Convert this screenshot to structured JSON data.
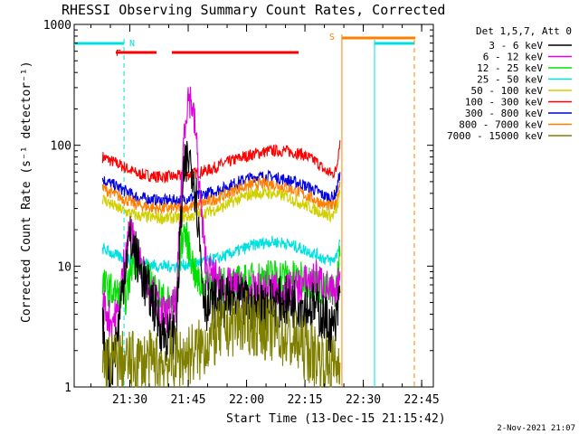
{
  "chart_data": {
    "type": "line",
    "title": "RHESSI Observing Summary Count Rates, Corrected",
    "xlabel": "Start Time (13-Dec-15 21:15:42)",
    "ylabel": "Corrected Count Rate (s⁻¹ detector⁻¹)",
    "ylim": [
      1,
      1000
    ],
    "yscale": "log",
    "xlim_minutes_of_day": [
      1275.7,
      1368
    ],
    "x_tick_labels": [
      "21:30",
      "21:45",
      "22:00",
      "22:15",
      "22:30",
      "22:45"
    ],
    "x_tick_minutes": [
      1290,
      1305,
      1320,
      1335,
      1350,
      1365
    ],
    "y_tick_labels": [
      "1",
      "10",
      "100",
      "1000"
    ],
    "y_tick_values": [
      1,
      10,
      100,
      1000
    ],
    "legend": {
      "header": "Det 1,5,7, Att 0",
      "placement": "outside-right",
      "entries": [
        {
          "name": "3 - 6 keV",
          "color": "#000000"
        },
        {
          "name": "6 - 12 keV",
          "color": "#e000e0"
        },
        {
          "name": "12 - 25 keV",
          "color": "#00e000"
        },
        {
          "name": "25 - 50 keV",
          "color": "#00e0e0"
        },
        {
          "name": "50 - 100 keV",
          "color": "#d0d000"
        },
        {
          "name": "100 - 300 keV",
          "color": "#ff0000"
        },
        {
          "name": "300 - 800 keV",
          "color": "#0000e0"
        },
        {
          "name": "800 - 7000 keV",
          "color": "#ff8000"
        },
        {
          "name": "7000 - 15000 keV",
          "color": "#808000"
        }
      ]
    },
    "series": [
      {
        "name": "100 - 300 keV",
        "color": "#ff0000",
        "x": [
          1283,
          1287,
          1292,
          1297,
          1302,
          1306,
          1310,
          1314,
          1318,
          1322,
          1326,
          1330,
          1334,
          1338,
          1340,
          1342,
          1343,
          1344
        ],
        "y": [
          80,
          70,
          58,
          55,
          55,
          58,
          62,
          70,
          78,
          85,
          90,
          90,
          85,
          73,
          62,
          58,
          62,
          110
        ]
      },
      {
        "name": "300 - 800 keV",
        "color": "#0000e0",
        "x": [
          1283,
          1287,
          1292,
          1297,
          1302,
          1306,
          1310,
          1314,
          1318,
          1322,
          1326,
          1330,
          1334,
          1338,
          1340,
          1342,
          1343,
          1344
        ],
        "y": [
          52,
          45,
          37,
          35,
          35,
          37,
          40,
          44,
          50,
          55,
          55,
          52,
          48,
          42,
          38,
          37,
          40,
          60
        ]
      },
      {
        "name": "800 - 7000 keV",
        "color": "#ff8000",
        "x": [
          1283,
          1287,
          1292,
          1297,
          1302,
          1306,
          1310,
          1314,
          1318,
          1322,
          1326,
          1330,
          1334,
          1338,
          1340,
          1342,
          1343,
          1344
        ],
        "y": [
          44,
          38,
          32,
          30,
          30,
          31,
          34,
          38,
          44,
          48,
          48,
          45,
          40,
          35,
          32,
          31,
          33,
          50
        ]
      },
      {
        "name": "50 - 100 keV",
        "color": "#d0d000",
        "x": [
          1283,
          1287,
          1292,
          1297,
          1302,
          1306,
          1310,
          1314,
          1318,
          1322,
          1326,
          1330,
          1334,
          1338,
          1340,
          1342,
          1343,
          1344
        ],
        "y": [
          36,
          30,
          26,
          25,
          25,
          26,
          28,
          31,
          36,
          40,
          40,
          38,
          33,
          29,
          27,
          26,
          28,
          40
        ]
      },
      {
        "name": "25 - 50 keV",
        "color": "#00e0e0",
        "x": [
          1283,
          1287,
          1292,
          1297,
          1302,
          1306,
          1310,
          1314,
          1318,
          1322,
          1326,
          1330,
          1334,
          1338,
          1340,
          1342,
          1343,
          1344
        ],
        "y": [
          14,
          12,
          11,
          10,
          10,
          10.5,
          11,
          12,
          13.5,
          15,
          16,
          15.5,
          14,
          12.5,
          11.5,
          11,
          12,
          16
        ]
      },
      {
        "name": "12 - 25 keV",
        "color": "#00e000",
        "x": [
          1283,
          1286,
          1289,
          1291,
          1293,
          1296,
          1299,
          1301,
          1302,
          1303,
          1304,
          1305,
          1306,
          1307,
          1308,
          1310,
          1312,
          1316,
          1320,
          1324,
          1328,
          1332,
          1336,
          1338,
          1340,
          1342,
          1343,
          1344
        ],
        "y": [
          7,
          6,
          5.5,
          12,
          9,
          7,
          5,
          5,
          5,
          14,
          20,
          15,
          11,
          8,
          7,
          7.5,
          7,
          7,
          7.5,
          8,
          8.5,
          8,
          7.5,
          7,
          6.5,
          6,
          6.5,
          12
        ]
      },
      {
        "name": "6 - 12 keV",
        "color": "#e000e0",
        "x": [
          1283,
          1285,
          1287,
          1289,
          1290,
          1292,
          1294,
          1296,
          1298,
          1300,
          1302,
          1303,
          1304,
          1305,
          1306,
          1307,
          1308,
          1309,
          1310,
          1312,
          1314,
          1318,
          1322,
          1326,
          1330,
          1334,
          1338,
          1342,
          1343,
          1344
        ],
        "y": [
          5,
          3.5,
          4,
          15,
          20,
          12,
          8,
          6,
          4,
          4,
          5,
          30,
          140,
          260,
          220,
          120,
          40,
          15,
          9,
          8,
          7,
          6.5,
          6,
          6.5,
          6,
          7,
          8,
          6,
          5,
          9
        ]
      },
      {
        "name": "3 - 6 keV",
        "color": "#000000",
        "x": [
          1283,
          1285,
          1287,
          1289,
          1290,
          1292,
          1294,
          1296,
          1298,
          1300,
          1302,
          1303,
          1304,
          1305,
          1306,
          1307,
          1308,
          1309,
          1310,
          1312,
          1314,
          1318,
          1322,
          1326,
          1330,
          1334,
          1338,
          1342,
          1343,
          1344
        ],
        "y": [
          3,
          1.2,
          3,
          12,
          17,
          11,
          7,
          5,
          3,
          2.5,
          3,
          20,
          60,
          80,
          70,
          40,
          15,
          6,
          4.5,
          5,
          5,
          5,
          4.5,
          5,
          5,
          5,
          4.5,
          3,
          3.2,
          6
        ]
      },
      {
        "name": "7000 - 15000 keV",
        "color": "#808000",
        "x": [
          1283,
          1288,
          1292,
          1296,
          1300,
          1304,
          1308,
          1310,
          1314,
          1318,
          1322,
          1326,
          1330,
          1334,
          1338,
          1340,
          1342,
          1343,
          1344
        ],
        "y": [
          1.6,
          1.6,
          1.6,
          1.6,
          1.6,
          1.8,
          2,
          2.4,
          3,
          3.5,
          3.3,
          3,
          2.6,
          2.2,
          1.8,
          1.6,
          1.5,
          1.5,
          1.6
        ]
      }
    ],
    "annotations": [
      {
        "label": "N",
        "color": "#00e0e0",
        "x": 1288.5
      },
      {
        "label": "F",
        "color": "#ff0000",
        "x": 1288
      },
      {
        "label": "S",
        "color": "#ff8000",
        "x": 1344.5
      }
    ]
  },
  "footer": {
    "date": "2-Nov-2021 21:07"
  }
}
